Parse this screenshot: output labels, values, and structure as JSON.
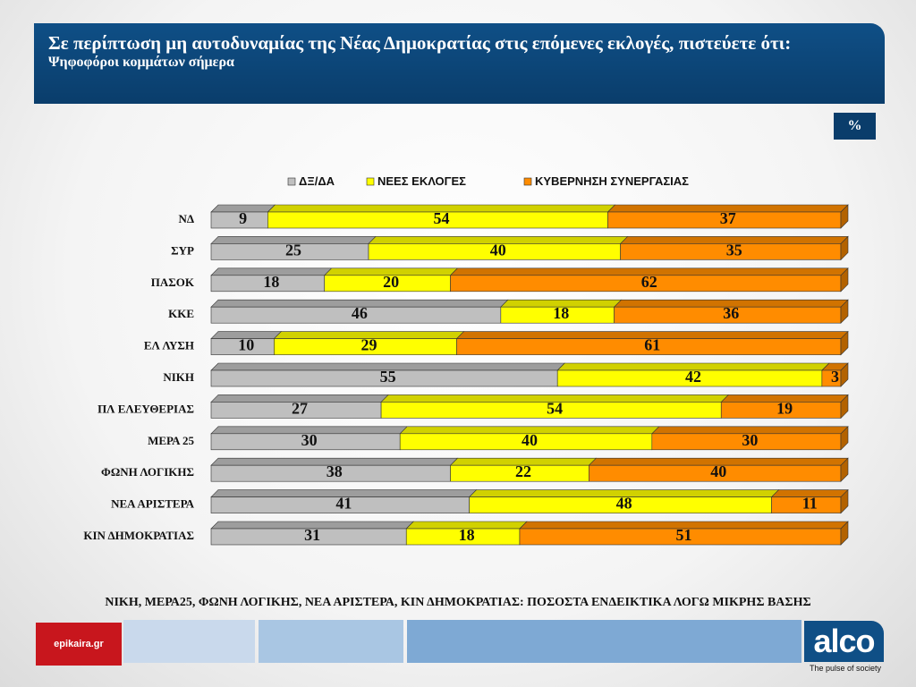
{
  "header": {
    "title": "Σε περίπτωση μη αυτοδυναμίας της Νέας Δημοκρατίας στις επόμενες εκλογές, πιστεύετε ότι:",
    "subtitle": "Ψηφοφόροι κομμάτων σήμερα"
  },
  "unit_badge": "%",
  "note": "ΝΙΚΗ, ΜΕΡΑ25, ΦΩΝΗ ΛΟΓΙΚΗΣ, ΝΕΑ ΑΡΙΣΤΕΡΑ, ΚΙΝ ΔΗΜΟΚΡΑΤΙΑΣ: ΠΟΣΟΣΤΑ ΕΝΔΕΙΚΤΙΚΑ ΛΟΓΩ ΜΙΚΡΗΣ ΒΑΣΗΣ",
  "footer": {
    "left_logo": "epikaira.gr",
    "right_logo": "alco",
    "right_tagline": "The pulse of society"
  },
  "chart_data": {
    "type": "bar",
    "orientation": "horizontal",
    "stacked": true,
    "title": "",
    "xlabel": "",
    "ylabel": "",
    "xlim": [
      0,
      100
    ],
    "legend_position": "top",
    "grid": false,
    "categories": [
      "ΝΔ",
      "ΣΥΡ",
      "ΠΑΣΟΚ",
      "ΚΚΕ",
      "ΕΛ ΛΥΣΗ",
      "ΝΙΚΗ",
      "ΠΛ ΕΛΕΥΘΕΡΙΑΣ",
      "ΜΕΡΑ 25",
      "ΦΩΝΗ ΛΟΓΙΚΗΣ",
      "ΝΕΑ ΑΡΙΣΤΕΡΑ",
      "ΚΙΝ ΔΗΜΟΚΡΑΤΙΑΣ"
    ],
    "series": [
      {
        "name": "ΔΞ/ΔΑ",
        "color": "#bfbfbf",
        "values": [
          9,
          25,
          18,
          46,
          10,
          55,
          27,
          30,
          38,
          41,
          31
        ]
      },
      {
        "name": "ΝΕΕΣ ΕΚΛΟΓΕΣ",
        "color": "#ffff00",
        "values": [
          54,
          40,
          20,
          18,
          29,
          42,
          54,
          40,
          22,
          48,
          18
        ]
      },
      {
        "name": "ΚΥΒΕΡΝΗΣΗ ΣΥΝΕΡΓΑΣΙΑΣ",
        "color": "#ff8c00",
        "values": [
          37,
          35,
          62,
          36,
          61,
          3,
          19,
          30,
          40,
          11,
          51
        ]
      }
    ]
  }
}
